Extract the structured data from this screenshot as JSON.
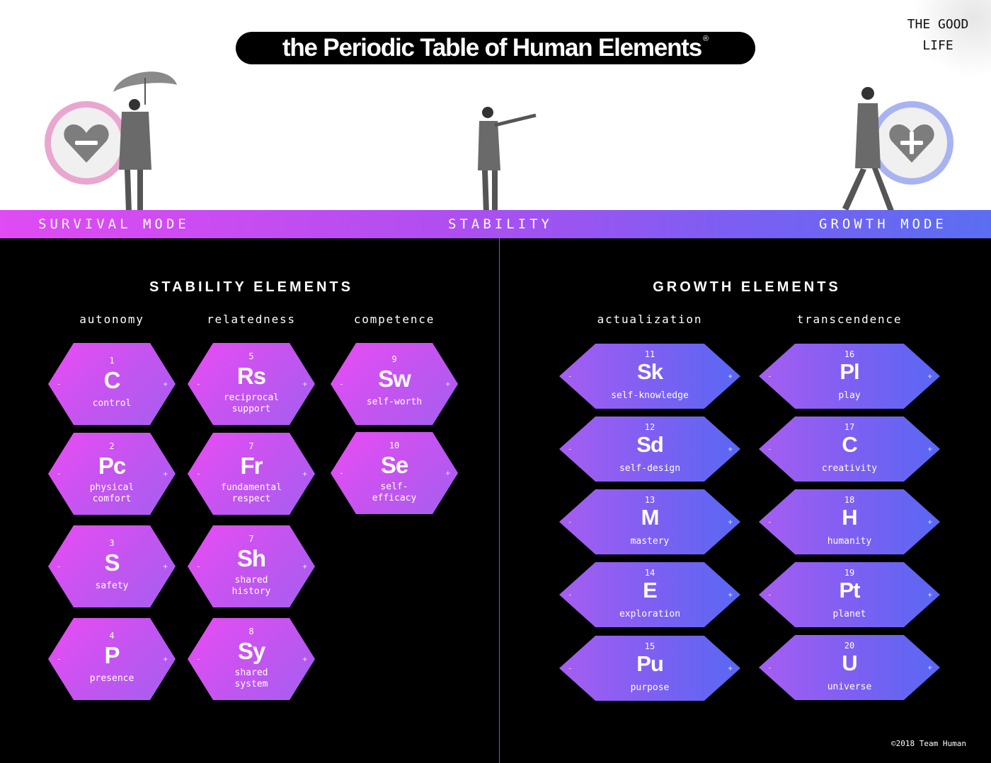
{
  "header": {
    "title": "the Periodic Table of Human Elements",
    "registered_mark": "®",
    "brand_line1": "THE GOOD",
    "brand_line2": "LIFE"
  },
  "mode_bar": {
    "left_label": "SURVIVAL MODE",
    "center_label": "STABILITY",
    "right_label": "GROWTH MODE",
    "gradient_colors": [
      "#e04bf3",
      "#b04ef0",
      "#7a5ff2",
      "#5b6ef2"
    ]
  },
  "mode_icons": {
    "minus_symbol": "−",
    "plus_symbol": "+"
  },
  "stability": {
    "title": "STABILITY ELEMENTS",
    "columns": [
      {
        "heading": "autonomy",
        "elements": [
          {
            "number": "1",
            "symbol": "C",
            "name": "control"
          },
          {
            "number": "2",
            "symbol": "Pc",
            "name": "physical\ncomfort"
          },
          {
            "number": "3",
            "symbol": "S",
            "name": "safety"
          },
          {
            "number": "4",
            "symbol": "P",
            "name": "presence"
          }
        ]
      },
      {
        "heading": "relatedness",
        "elements": [
          {
            "number": "5",
            "symbol": "Rs",
            "name": "reciprocal\nsupport"
          },
          {
            "number": "7",
            "symbol": "Fr",
            "name": "fundamental\nrespect"
          },
          {
            "number": "7",
            "symbol": "Sh",
            "name": "shared\nhistory"
          },
          {
            "number": "8",
            "symbol": "Sy",
            "name": "shared\nsystem"
          }
        ]
      },
      {
        "heading": "competence",
        "elements": [
          {
            "number": "9",
            "symbol": "Sw",
            "name": "self-worth"
          },
          {
            "number": "10",
            "symbol": "Se",
            "name": "self-\nefficacy"
          }
        ]
      }
    ]
  },
  "growth": {
    "title": "GROWTH ELEMENTS",
    "columns": [
      {
        "heading": "actualization",
        "elements": [
          {
            "number": "11",
            "symbol": "Sk",
            "name": "self-knowledge"
          },
          {
            "number": "12",
            "symbol": "Sd",
            "name": "self-design"
          },
          {
            "number": "13",
            "symbol": "M",
            "name": "mastery"
          },
          {
            "number": "14",
            "symbol": "E",
            "name": "exploration"
          },
          {
            "number": "15",
            "symbol": "Pu",
            "name": "purpose"
          }
        ]
      },
      {
        "heading": "transcendence",
        "elements": [
          {
            "number": "16",
            "symbol": "Pl",
            "name": "play"
          },
          {
            "number": "17",
            "symbol": "C",
            "name": "creativity"
          },
          {
            "number": "18",
            "symbol": "H",
            "name": "humanity"
          },
          {
            "number": "19",
            "symbol": "Pt",
            "name": "planet"
          },
          {
            "number": "20",
            "symbol": "U",
            "name": "universe"
          }
        ]
      }
    ]
  },
  "hex_marks": {
    "minus": "-",
    "plus": "+"
  },
  "footer": {
    "copyright": "©2018 Team Human"
  }
}
